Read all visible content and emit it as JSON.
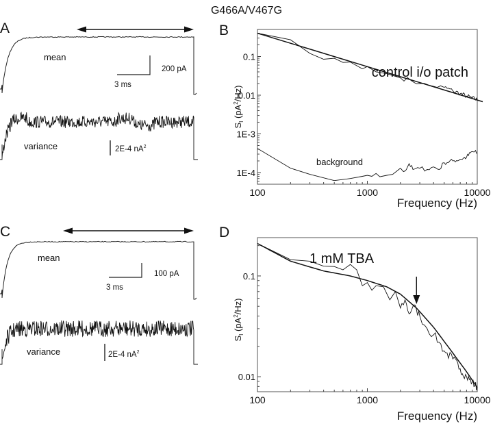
{
  "figure_title": "G466A/V467G",
  "panels": {
    "A": {
      "label": "A",
      "mean_label": "mean",
      "variance_label": "variance",
      "scale_y_mean": "200 pA",
      "scale_x": "3 ms",
      "scale_variance": "2E-4 nA",
      "scale_variance_sup": "2"
    },
    "B": {
      "label": "B",
      "annotation": "control i/o patch",
      "background_label": "background"
    },
    "C": {
      "label": "C",
      "mean_label": "mean",
      "variance_label": "variance",
      "scale_y_mean": "100 pA",
      "scale_x": "3 ms",
      "scale_variance": "2E-4 nA",
      "scale_variance_sup": "2"
    },
    "D": {
      "label": "D",
      "annotation": "1 mM TBA"
    }
  },
  "chart_data": [
    {
      "panel": "A",
      "type": "line",
      "title": "",
      "traces": [
        {
          "name": "mean",
          "description": "current rises exponentially then plateaus over ~12 ms pulse; arrow marks analysis window on plateau"
        },
        {
          "name": "variance",
          "description": "noisy variance trace, rises with current and plateaus"
        }
      ],
      "scale_bars": {
        "time": "3 ms",
        "current": "200 pA",
        "variance": "2E-4 nA^2"
      }
    },
    {
      "panel": "B",
      "type": "line",
      "title": "control i/o patch",
      "xlabel": "Frequency (Hz)",
      "ylabel": "S_I (pA²/Hz)",
      "xscale": "log",
      "yscale": "log",
      "xlim": [
        100,
        10000
      ],
      "ylim": [
        5e-05,
        0.5
      ],
      "xticks": [
        "100",
        "1000",
        "10000"
      ],
      "yticks": [
        "1E-4",
        "1E-3",
        "0.01",
        "0.1"
      ],
      "series": [
        {
          "name": "spectrum",
          "x": [
            100,
            200,
            300,
            400,
            500,
            600,
            700,
            800,
            900,
            1000,
            1200,
            1500,
            2000,
            2500,
            3000,
            4000,
            5000,
            6000,
            7000,
            8000,
            9000,
            10000
          ],
          "y": [
            0.4,
            0.27,
            0.12,
            0.085,
            0.09,
            0.07,
            0.072,
            0.058,
            0.048,
            0.055,
            0.04,
            0.036,
            0.028,
            0.024,
            0.02,
            0.017,
            0.016,
            0.013,
            0.011,
            0.0095,
            0.0085,
            0.0075
          ]
        },
        {
          "name": "fit (1/f)",
          "x": [
            100,
            10000
          ],
          "y": [
            0.4,
            0.0075
          ]
        },
        {
          "name": "background",
          "x": [
            100,
            200,
            300,
            500,
            700,
            900,
            1000,
            1100,
            1200,
            1300,
            1500,
            1700,
            2000,
            2200,
            2400,
            2600,
            3000,
            3500,
            4000,
            4500,
            5000,
            6000,
            7000,
            8000,
            9000,
            10000
          ],
          "y": [
            0.00042,
            0.00013,
            9e-05,
            6.2e-05,
            7e-05,
            8e-05,
            8.5e-05,
            8e-05,
            9.5e-05,
            7.8e-05,
            8.5e-05,
            9e-05,
            0.00013,
            0.00011,
            0.00017,
            0.00012,
            0.00013,
            0.00012,
            0.00014,
            0.00012,
            0.00018,
            0.0002,
            0.00022,
            0.00025,
            0.00035,
            0.00032
          ]
        }
      ]
    },
    {
      "panel": "C",
      "type": "line",
      "title": "",
      "traces": [
        {
          "name": "mean",
          "description": "current rises and plateaus; arrow marks analysis window"
        },
        {
          "name": "variance",
          "description": "noisy variance trace with higher relative noise"
        }
      ],
      "scale_bars": {
        "time": "3 ms",
        "current": "100 pA",
        "variance": "2E-4 nA^2"
      }
    },
    {
      "panel": "D",
      "type": "line",
      "title": "1 mM TBA",
      "xlabel": "Frequency (Hz)",
      "ylabel": "S_I (pA²/Hz)",
      "xscale": "log",
      "yscale": "log",
      "xlim": [
        100,
        10000
      ],
      "ylim": [
        0.0071,
        0.24
      ],
      "xticks": [
        "100",
        "1000",
        "10000"
      ],
      "yticks": [
        "0.01",
        "0.1"
      ],
      "annotation_arrow_x": 2800,
      "series": [
        {
          "name": "spectrum",
          "x": [
            100,
            200,
            300,
            400,
            500,
            600,
            700,
            800,
            900,
            1000,
            1100,
            1200,
            1400,
            1600,
            1800,
            2000,
            2200,
            2400,
            2600,
            2800,
            3000,
            3500,
            4000,
            4500,
            5000,
            6000,
            7000,
            8000,
            9000,
            10000
          ],
          "y": [
            0.21,
            0.145,
            0.14,
            0.125,
            0.124,
            0.115,
            0.13,
            0.115,
            0.08,
            0.086,
            0.072,
            0.08,
            0.078,
            0.058,
            0.07,
            0.048,
            0.058,
            0.042,
            0.05,
            0.046,
            0.04,
            0.03,
            0.026,
            0.022,
            0.018,
            0.015,
            0.012,
            0.01,
            0.0088,
            0.0078
          ]
        },
        {
          "name": "fit (Lorentzian + 1/f)",
          "x": [
            100,
            200,
            400,
            700,
            1000,
            1500,
            2000,
            2800,
            4000,
            5600,
            8000,
            10000
          ],
          "y": [
            0.21,
            0.14,
            0.112,
            0.1,
            0.09,
            0.078,
            0.066,
            0.048,
            0.031,
            0.019,
            0.0112,
            0.0078
          ]
        }
      ]
    }
  ]
}
